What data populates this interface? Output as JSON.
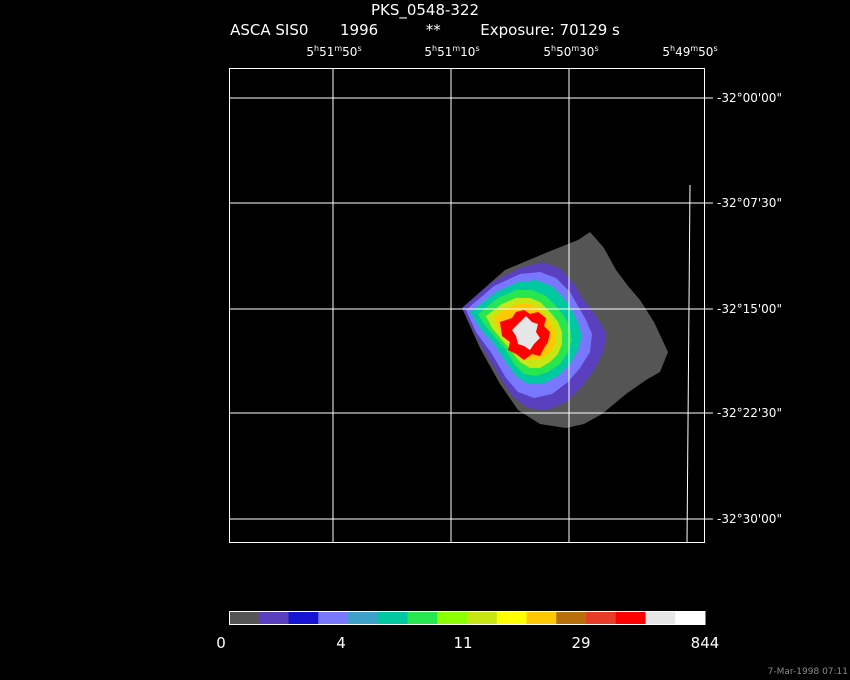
{
  "header": {
    "object": "PKS_0548-322",
    "instrument": "ASCA SIS0",
    "year": "1996",
    "marker": "**",
    "exposure": "Exposure: 70129 s"
  },
  "ra_ticks": [
    {
      "h": "5",
      "m": "51",
      "s": "50"
    },
    {
      "h": "5",
      "m": "51",
      "s": "10"
    },
    {
      "h": "5",
      "m": "50",
      "s": "30"
    },
    {
      "h": "5",
      "m": "49",
      "s": "50"
    }
  ],
  "dec_ticks": [
    "-32°00'00\"",
    "-32°07'30\"",
    "-32°15'00\"",
    "-32°22'30\"",
    "-32°30'00\""
  ],
  "colorbar": {
    "labels": [
      "0",
      "4",
      "11",
      "29",
      "844"
    ],
    "colors": [
      "#555555",
      "#5a3fbf",
      "#1414d2",
      "#7878ff",
      "#3ca0c8",
      "#00c8a0",
      "#28e650",
      "#8cff00",
      "#c8e614",
      "#ffff00",
      "#ffc800",
      "#b86e0a",
      "#e63c28",
      "#ff0000",
      "#e6e6e6",
      "#ffffff"
    ]
  },
  "timestamp": "7-Mar-1998 07:11"
}
